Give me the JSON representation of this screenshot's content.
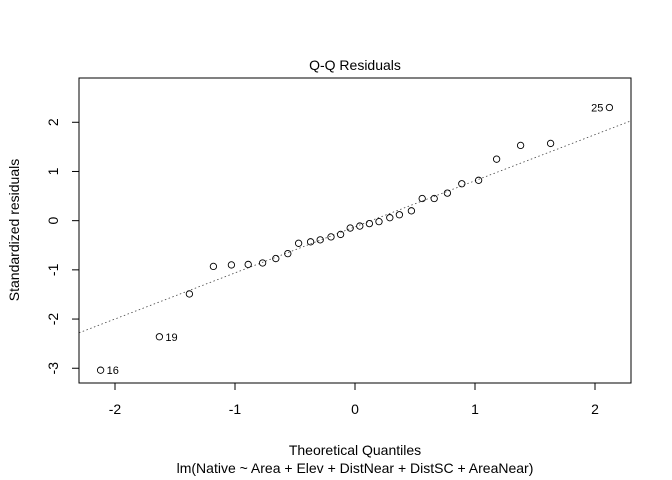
{
  "chart_data": {
    "type": "scatter",
    "title": "Q-Q Residuals",
    "xlabel": "Theoretical Quantiles",
    "subtitle": "lm(Native ~ Area + Elev + DistNear + DistSC + AreaNear)",
    "ylabel": "Standardized residuals",
    "xlim": [
      -2.3,
      2.3
    ],
    "ylim": [
      -3.3,
      2.9
    ],
    "x_ticks": [
      -2,
      -1,
      0,
      1,
      2
    ],
    "y_ticks": [
      -3,
      -2,
      -1,
      0,
      1,
      2
    ],
    "x_tick_labels": [
      "-2",
      "-1",
      "0",
      "1",
      "2"
    ],
    "y_tick_labels": [
      "-3",
      "-2",
      "-1",
      "0",
      "1",
      "2"
    ],
    "reference_line": {
      "style": "dotted",
      "points": [
        [
          -2.3,
          -2.28
        ],
        [
          2.3,
          2.03
        ]
      ]
    },
    "points": [
      {
        "x": -2.12,
        "y": -3.04,
        "label": "16"
      },
      {
        "x": -1.63,
        "y": -2.36,
        "label": "19"
      },
      {
        "x": -1.38,
        "y": -1.49
      },
      {
        "x": -1.18,
        "y": -0.93
      },
      {
        "x": -1.03,
        "y": -0.9
      },
      {
        "x": -0.89,
        "y": -0.89
      },
      {
        "x": -0.77,
        "y": -0.86
      },
      {
        "x": -0.66,
        "y": -0.77
      },
      {
        "x": -0.56,
        "y": -0.67
      },
      {
        "x": -0.47,
        "y": -0.46
      },
      {
        "x": -0.37,
        "y": -0.43
      },
      {
        "x": -0.29,
        "y": -0.39
      },
      {
        "x": -0.2,
        "y": -0.33
      },
      {
        "x": -0.12,
        "y": -0.28
      },
      {
        "x": -0.04,
        "y": -0.15
      },
      {
        "x": 0.04,
        "y": -0.11
      },
      {
        "x": 0.12,
        "y": -0.06
      },
      {
        "x": 0.2,
        "y": -0.02
      },
      {
        "x": 0.29,
        "y": 0.06
      },
      {
        "x": 0.37,
        "y": 0.12
      },
      {
        "x": 0.47,
        "y": 0.2
      },
      {
        "x": 0.56,
        "y": 0.45
      },
      {
        "x": 0.66,
        "y": 0.45
      },
      {
        "x": 0.77,
        "y": 0.56
      },
      {
        "x": 0.89,
        "y": 0.75
      },
      {
        "x": 1.03,
        "y": 0.82
      },
      {
        "x": 1.18,
        "y": 1.25
      },
      {
        "x": 1.38,
        "y": 1.53
      },
      {
        "x": 1.63,
        "y": 1.57
      },
      {
        "x": 2.12,
        "y": 2.3,
        "label": "25"
      }
    ]
  }
}
